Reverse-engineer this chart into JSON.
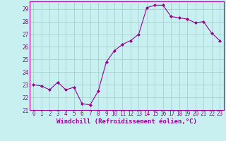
{
  "x": [
    0,
    1,
    2,
    3,
    4,
    5,
    6,
    7,
    8,
    9,
    10,
    11,
    12,
    13,
    14,
    15,
    16,
    17,
    18,
    19,
    20,
    21,
    22,
    23
  ],
  "y": [
    23.0,
    22.9,
    22.6,
    23.2,
    22.6,
    22.8,
    21.5,
    21.4,
    22.5,
    24.8,
    25.7,
    26.2,
    26.5,
    27.0,
    29.1,
    29.3,
    29.3,
    28.4,
    28.3,
    28.2,
    27.9,
    28.0,
    27.1,
    26.5
  ],
  "line_color": "#990099",
  "marker": "D",
  "marker_size": 2,
  "bg_color": "#c8f0f0",
  "grid_color": "#a0cccc",
  "ylabel_ticks": [
    21,
    22,
    23,
    24,
    25,
    26,
    27,
    28,
    29
  ],
  "xlabel_ticks": [
    0,
    1,
    2,
    3,
    4,
    5,
    6,
    7,
    8,
    9,
    10,
    11,
    12,
    13,
    14,
    15,
    16,
    17,
    18,
    19,
    20,
    21,
    22,
    23
  ],
  "xlabel": "Windchill (Refroidissement éolien,°C)",
  "ylim": [
    21.0,
    29.6
  ],
  "xlim": [
    -0.5,
    23.5
  ],
  "axis_color": "#990099",
  "tick_color": "#990099",
  "tick_fontsize": 5.5,
  "xlabel_fontsize": 6.5
}
